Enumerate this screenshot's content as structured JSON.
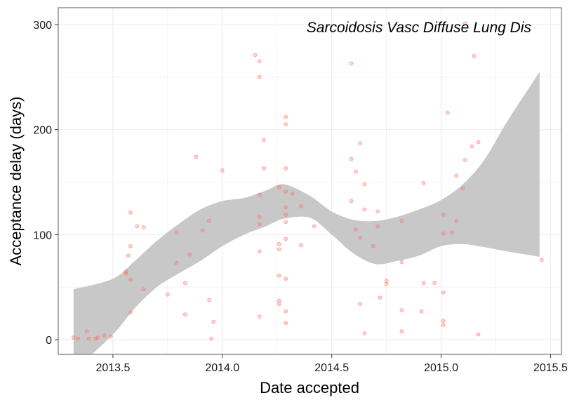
{
  "chart_data": {
    "type": "scatter",
    "title": "",
    "annotation": "Sarcoidosis Vasc Diffuse Lung Dis",
    "xlabel": "Date accepted",
    "ylabel": "Acceptance delay (days)",
    "xlim": [
      2013.25,
      2015.55
    ],
    "ylim": [
      -14,
      316
    ],
    "x_ticks": [
      2013.5,
      2014.0,
      2014.5,
      2015.0,
      2015.5
    ],
    "x_tick_labels": [
      "2013.5",
      "2014.0",
      "2014.5",
      "2015.0",
      "2015.5"
    ],
    "y_ticks": [
      0,
      100,
      200,
      300
    ],
    "y_tick_labels": [
      "0",
      "100",
      "200",
      "300"
    ],
    "grid": true,
    "colors": {
      "points": "#ff6b5e",
      "band": "#c8c8c8",
      "panel_border": "#7f7f7f",
      "grid": "#ebebeb"
    },
    "series": [
      {
        "type": "scatter",
        "points": [
          [
            2013.32,
            2
          ],
          [
            2013.34,
            1
          ],
          [
            2013.38,
            8
          ],
          [
            2013.39,
            1
          ],
          [
            2013.42,
            1
          ],
          [
            2013.43,
            2
          ],
          [
            2013.46,
            4
          ],
          [
            2013.49,
            3
          ],
          [
            2013.56,
            65
          ],
          [
            2013.56,
            63
          ],
          [
            2013.57,
            80
          ],
          [
            2013.58,
            89
          ],
          [
            2013.58,
            121
          ],
          [
            2013.58,
            57
          ],
          [
            2013.58,
            26
          ],
          [
            2013.61,
            108
          ],
          [
            2013.64,
            107
          ],
          [
            2013.64,
            48
          ],
          [
            2013.75,
            43
          ],
          [
            2013.79,
            102
          ],
          [
            2013.79,
            73
          ],
          [
            2013.83,
            54
          ],
          [
            2013.83,
            24
          ],
          [
            2013.85,
            81
          ],
          [
            2013.88,
            174
          ],
          [
            2013.91,
            104
          ],
          [
            2013.94,
            113
          ],
          [
            2013.94,
            38
          ],
          [
            2013.95,
            1
          ],
          [
            2013.96,
            17
          ],
          [
            2014.0,
            161
          ],
          [
            2014.15,
            271
          ],
          [
            2014.17,
            265
          ],
          [
            2014.17,
            250
          ],
          [
            2014.17,
            138
          ],
          [
            2014.17,
            117
          ],
          [
            2014.17,
            110
          ],
          [
            2014.17,
            84
          ],
          [
            2014.17,
            22
          ],
          [
            2014.19,
            190
          ],
          [
            2014.19,
            163
          ],
          [
            2014.26,
            145
          ],
          [
            2014.26,
            86
          ],
          [
            2014.26,
            91
          ],
          [
            2014.26,
            61
          ],
          [
            2014.26,
            37
          ],
          [
            2014.26,
            34
          ],
          [
            2014.29,
            212
          ],
          [
            2014.29,
            205
          ],
          [
            2014.29,
            163
          ],
          [
            2014.29,
            141
          ],
          [
            2014.29,
            126
          ],
          [
            2014.29,
            119
          ],
          [
            2014.29,
            112
          ],
          [
            2014.29,
            96
          ],
          [
            2014.29,
            58
          ],
          [
            2014.29,
            27
          ],
          [
            2014.29,
            16
          ],
          [
            2014.32,
            139
          ],
          [
            2014.36,
            127
          ],
          [
            2014.36,
            90
          ],
          [
            2014.42,
            108
          ],
          [
            2014.59,
            263
          ],
          [
            2014.59,
            172
          ],
          [
            2014.59,
            132
          ],
          [
            2014.61,
            160
          ],
          [
            2014.61,
            105
          ],
          [
            2014.63,
            187
          ],
          [
            2014.63,
            97
          ],
          [
            2014.63,
            34
          ],
          [
            2014.65,
            148
          ],
          [
            2014.65,
            124
          ],
          [
            2014.65,
            6
          ],
          [
            2014.69,
            89
          ],
          [
            2014.71,
            122
          ],
          [
            2014.71,
            108
          ],
          [
            2014.72,
            40
          ],
          [
            2014.75,
            56
          ],
          [
            2014.75,
            53
          ],
          [
            2014.82,
            113
          ],
          [
            2014.82,
            74
          ],
          [
            2014.82,
            28
          ],
          [
            2014.82,
            8
          ],
          [
            2014.91,
            27
          ],
          [
            2014.92,
            149
          ],
          [
            2014.92,
            54
          ],
          [
            2014.97,
            54
          ],
          [
            2015.01,
            119
          ],
          [
            2015.01,
            101
          ],
          [
            2015.01,
            45
          ],
          [
            2015.01,
            18
          ],
          [
            2015.01,
            14
          ],
          [
            2015.03,
            216
          ],
          [
            2015.05,
            102
          ],
          [
            2015.07,
            156
          ],
          [
            2015.07,
            113
          ],
          [
            2015.1,
            144
          ],
          [
            2015.11,
            301
          ],
          [
            2015.11,
            171
          ],
          [
            2015.14,
            184
          ],
          [
            2015.15,
            270
          ],
          [
            2015.17,
            188
          ],
          [
            2015.17,
            5
          ],
          [
            2015.46,
            76
          ]
        ]
      },
      {
        "type": "smooth_band",
        "x": [
          2013.32,
          2013.5,
          2013.6,
          2013.7,
          2013.8,
          2013.9,
          2014.0,
          2014.1,
          2014.2,
          2014.28,
          2014.4,
          2014.5,
          2014.6,
          2014.7,
          2014.8,
          2014.9,
          2015.0,
          2015.1,
          2015.2,
          2015.3,
          2015.45
        ],
        "upper": [
          48,
          58,
          75,
          94,
          110,
          124,
          132,
          135,
          142,
          148,
          137,
          122,
          114,
          113,
          117,
          124,
          133,
          148,
          172,
          207,
          255
        ],
        "lower": [
          -30,
          5,
          30,
          50,
          63,
          75,
          89,
          100,
          108,
          115,
          116,
          100,
          82,
          72,
          75,
          80,
          89,
          91,
          88,
          84,
          79
        ]
      }
    ]
  }
}
